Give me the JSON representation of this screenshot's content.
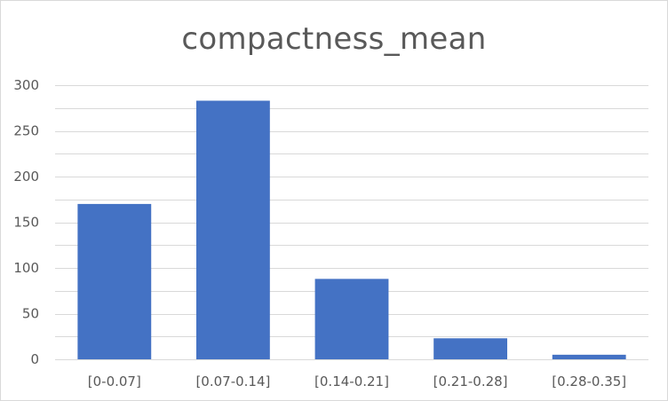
{
  "chart_data": {
    "type": "bar",
    "title": "compactness_mean",
    "xlabel": "",
    "ylabel": "",
    "categories": [
      "[0-0.07]",
      "[0.07-0.14]",
      "[0.14-0.21]",
      "[0.21-0.28]",
      "[0.28-0.35]"
    ],
    "values": [
      170,
      283,
      88,
      23,
      5
    ],
    "ylim": [
      0,
      300
    ],
    "yticks": [
      0,
      50,
      100,
      150,
      200,
      250,
      300
    ],
    "grid": true,
    "legend": "none",
    "colors": {
      "bar": "#4472c4",
      "grid": "#d9d9d9",
      "text": "#595959"
    }
  }
}
